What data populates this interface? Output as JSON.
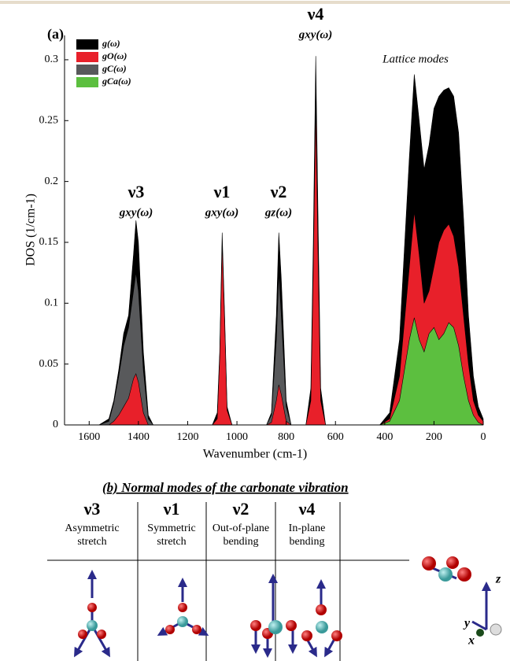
{
  "chart_data": {
    "type": "area",
    "panel_label": "(a)",
    "xlabel": "Wavenumber (cm-1)",
    "ylabel": "DOS (1/cm-1)",
    "xlim": [
      1700,
      0
    ],
    "xticks": [
      1600,
      1400,
      1200,
      1000,
      800,
      600,
      400,
      200,
      0
    ],
    "ylim": [
      0,
      0.32
    ],
    "yticks": [
      0,
      0.05,
      0.1,
      0.15,
      0.2,
      0.25,
      0.3
    ],
    "legend": "upper left",
    "x": [
      1560,
      1520,
      1500,
      1480,
      1460,
      1440,
      1420,
      1410,
      1400,
      1380,
      1360,
      1340,
      1100,
      1080,
      1070,
      1060,
      1050,
      1040,
      1020,
      880,
      860,
      840,
      830,
      820,
      800,
      780,
      720,
      700,
      690,
      680,
      670,
      660,
      640,
      420,
      380,
      340,
      300,
      280,
      260,
      240,
      220,
      200,
      180,
      160,
      140,
      120,
      100,
      80,
      60,
      40,
      20,
      0
    ],
    "series": [
      {
        "name": "g(ω)",
        "color": "#000000",
        "values": [
          0,
          0.005,
          0.02,
          0.045,
          0.075,
          0.09,
          0.14,
          0.168,
          0.15,
          0.06,
          0.008,
          0,
          0,
          0.01,
          0.06,
          0.158,
          0.09,
          0.015,
          0,
          0,
          0.01,
          0.09,
          0.158,
          0.12,
          0.02,
          0,
          0,
          0.03,
          0.15,
          0.303,
          0.16,
          0.03,
          0,
          0,
          0.01,
          0.07,
          0.22,
          0.288,
          0.25,
          0.21,
          0.23,
          0.26,
          0.27,
          0.275,
          0.277,
          0.27,
          0.24,
          0.17,
          0.09,
          0.04,
          0.015,
          0.005
        ]
      },
      {
        "name": "gO(ω)",
        "color": "#e8202a",
        "values": [
          0,
          0,
          0.003,
          0.008,
          0.015,
          0.022,
          0.038,
          0.042,
          0.035,
          0.01,
          0,
          0,
          0,
          0.005,
          0.055,
          0.148,
          0.085,
          0.012,
          0,
          0,
          0.002,
          0.02,
          0.033,
          0.025,
          0.003,
          0,
          0,
          0.02,
          0.13,
          0.262,
          0.13,
          0.02,
          0,
          0,
          0.005,
          0.04,
          0.13,
          0.175,
          0.14,
          0.1,
          0.11,
          0.13,
          0.15,
          0.16,
          0.165,
          0.155,
          0.13,
          0.09,
          0.05,
          0.02,
          0.008,
          0.003
        ]
      },
      {
        "name": "gC(ω)",
        "color": "#58595b",
        "values": [
          0,
          0.003,
          0.018,
          0.04,
          0.065,
          0.08,
          0.11,
          0.125,
          0.11,
          0.045,
          0.005,
          0,
          0,
          0.001,
          0.004,
          0.01,
          0.006,
          0.001,
          0,
          0,
          0.008,
          0.07,
          0.125,
          0.09,
          0.015,
          0,
          0,
          0.004,
          0.02,
          0.038,
          0.02,
          0.004,
          0,
          0,
          0,
          0.005,
          0.02,
          0.028,
          0.022,
          0.012,
          0.015,
          0.02,
          0.025,
          0.03,
          0.031,
          0.03,
          0.025,
          0.017,
          0.008,
          0.003,
          0.001,
          0
        ]
      },
      {
        "name": "gCa(ω)",
        "color": "#5cbf3f",
        "values": [
          0,
          0,
          0,
          0,
          0,
          0,
          0,
          0,
          0,
          0,
          0,
          0,
          0,
          0,
          0,
          0,
          0,
          0,
          0,
          0,
          0,
          0,
          0,
          0,
          0,
          0,
          0,
          0,
          0,
          0,
          0,
          0,
          0,
          0,
          0.003,
          0.02,
          0.07,
          0.088,
          0.07,
          0.06,
          0.075,
          0.08,
          0.07,
          0.075,
          0.084,
          0.08,
          0.065,
          0.04,
          0.02,
          0.008,
          0.002,
          0
        ]
      }
    ],
    "annotations": [
      {
        "mode": "ν3",
        "dos": "gxy(ω)"
      },
      {
        "mode": "ν1",
        "dos": "gxy(ω)"
      },
      {
        "mode": "ν2",
        "dos": "gz(ω)"
      },
      {
        "mode": "ν4",
        "dos": "gxy(ω)"
      },
      {
        "mode": "Lattice modes"
      }
    ]
  },
  "diagram": {
    "title": "(b) Normal modes of the carbonate vibration",
    "modes": [
      {
        "symbol": "ν3",
        "name": [
          "Asymmetric",
          "stretch"
        ]
      },
      {
        "symbol": "ν1",
        "name": [
          "Symmetric",
          "stretch"
        ]
      },
      {
        "symbol": "ν2",
        "name": [
          "Out-of-plane",
          "bending"
        ]
      },
      {
        "symbol": "ν4",
        "name": [
          "In-plane",
          "bending"
        ]
      }
    ],
    "axes": [
      "z",
      "y",
      "x"
    ]
  }
}
